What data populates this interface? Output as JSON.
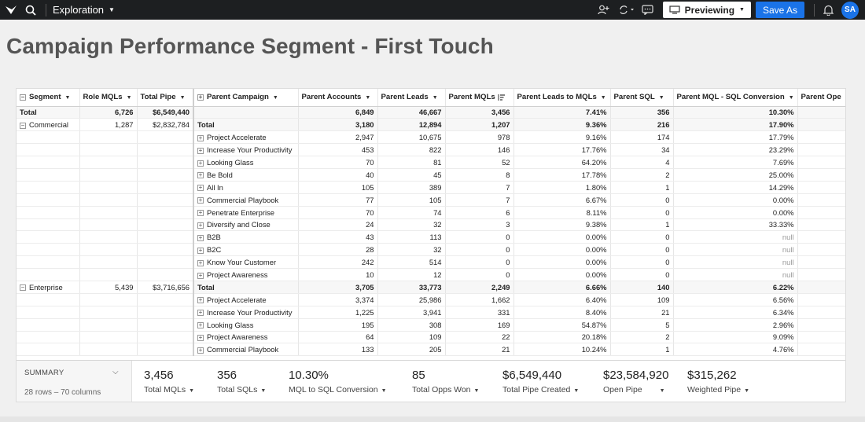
{
  "topbar": {
    "menu_label": "Exploration",
    "previewing_label": "Previewing",
    "save_label": "Save As",
    "avatar_initials": "SA"
  },
  "page_title": "Campaign Performance Segment - First Touch",
  "table": {
    "headers": {
      "segment": "Segment",
      "role_mqls": "Role MQLs",
      "total_pipe": "Total Pipe",
      "parent_campaign": "Parent Campaign",
      "parent_accounts": "Parent Accounts",
      "parent_leads": "Parent Leads",
      "parent_mqls": "Parent MQLs",
      "leads_to_mqls": "Parent Leads to MQLs",
      "parent_sql": "Parent SQL",
      "mql_sql_conv": "Parent MQL - SQL Conversion",
      "parent_ope": "Parent Ope"
    },
    "rows": [
      {
        "kind": "grand",
        "segment": "Total",
        "role_mqls": "6,726",
        "total_pipe": "$6,549,440",
        "campaign": "",
        "accounts": "6,849",
        "leads": "46,667",
        "mqls": "3,456",
        "l2m": "7.41%",
        "sql": "356",
        "conv": "10.30%"
      },
      {
        "kind": "total",
        "segment": "Commercial",
        "role_mqls": "1,287",
        "total_pipe": "$2,832,784",
        "campaign": "Total",
        "accounts": "3,180",
        "leads": "12,894",
        "mqls": "1,207",
        "l2m": "9.36%",
        "sql": "216",
        "conv": "17.90%"
      },
      {
        "kind": "row",
        "campaign": "Project Accelerate",
        "accounts": "2,947",
        "leads": "10,675",
        "mqls": "978",
        "l2m": "9.16%",
        "sql": "174",
        "conv": "17.79%"
      },
      {
        "kind": "row",
        "campaign": "Increase Your Productivity",
        "accounts": "453",
        "leads": "822",
        "mqls": "146",
        "l2m": "17.76%",
        "sql": "34",
        "conv": "23.29%"
      },
      {
        "kind": "row",
        "campaign": "Looking Glass",
        "accounts": "70",
        "leads": "81",
        "mqls": "52",
        "l2m": "64.20%",
        "sql": "4",
        "conv": "7.69%"
      },
      {
        "kind": "row",
        "campaign": "Be Bold",
        "accounts": "40",
        "leads": "45",
        "mqls": "8",
        "l2m": "17.78%",
        "sql": "2",
        "conv": "25.00%"
      },
      {
        "kind": "row",
        "campaign": "All In",
        "accounts": "105",
        "leads": "389",
        "mqls": "7",
        "l2m": "1.80%",
        "sql": "1",
        "conv": "14.29%"
      },
      {
        "kind": "row",
        "campaign": "Commercial Playbook",
        "accounts": "77",
        "leads": "105",
        "mqls": "7",
        "l2m": "6.67%",
        "sql": "0",
        "conv": "0.00%"
      },
      {
        "kind": "row",
        "campaign": "Penetrate Enterprise",
        "accounts": "70",
        "leads": "74",
        "mqls": "6",
        "l2m": "8.11%",
        "sql": "0",
        "conv": "0.00%"
      },
      {
        "kind": "row",
        "campaign": "Diversify and Close",
        "accounts": "24",
        "leads": "32",
        "mqls": "3",
        "l2m": "9.38%",
        "sql": "1",
        "conv": "33.33%"
      },
      {
        "kind": "row",
        "campaign": "B2B",
        "accounts": "43",
        "leads": "113",
        "mqls": "0",
        "l2m": "0.00%",
        "sql": "0",
        "conv": "null"
      },
      {
        "kind": "row",
        "campaign": "B2C",
        "accounts": "28",
        "leads": "32",
        "mqls": "0",
        "l2m": "0.00%",
        "sql": "0",
        "conv": "null"
      },
      {
        "kind": "row",
        "campaign": "Know Your Customer",
        "accounts": "242",
        "leads": "514",
        "mqls": "0",
        "l2m": "0.00%",
        "sql": "0",
        "conv": "null"
      },
      {
        "kind": "row",
        "campaign": "Project Awareness",
        "accounts": "10",
        "leads": "12",
        "mqls": "0",
        "l2m": "0.00%",
        "sql": "0",
        "conv": "null"
      },
      {
        "kind": "total",
        "segment": "Enterprise",
        "role_mqls": "5,439",
        "total_pipe": "$3,716,656",
        "campaign": "Total",
        "accounts": "3,705",
        "leads": "33,773",
        "mqls": "2,249",
        "l2m": "6.66%",
        "sql": "140",
        "conv": "6.22%"
      },
      {
        "kind": "row",
        "campaign": "Project Accelerate",
        "accounts": "3,374",
        "leads": "25,986",
        "mqls": "1,662",
        "l2m": "6.40%",
        "sql": "109",
        "conv": "6.56%"
      },
      {
        "kind": "row",
        "campaign": "Increase Your Productivity",
        "accounts": "1,225",
        "leads": "3,941",
        "mqls": "331",
        "l2m": "8.40%",
        "sql": "21",
        "conv": "6.34%"
      },
      {
        "kind": "row",
        "campaign": "Looking Glass",
        "accounts": "195",
        "leads": "308",
        "mqls": "169",
        "l2m": "54.87%",
        "sql": "5",
        "conv": "2.96%"
      },
      {
        "kind": "row",
        "campaign": "Project Awareness",
        "accounts": "64",
        "leads": "109",
        "mqls": "22",
        "l2m": "20.18%",
        "sql": "2",
        "conv": "9.09%"
      },
      {
        "kind": "row",
        "campaign": "Commercial Playbook",
        "accounts": "133",
        "leads": "205",
        "mqls": "21",
        "l2m": "10.24%",
        "sql": "1",
        "conv": "4.76%"
      }
    ]
  },
  "summary": {
    "label": "SUMMARY",
    "rows_cols": "28 rows – 70 columns",
    "metrics": [
      {
        "value": "3,456",
        "name": "Total MQLs"
      },
      {
        "value": "356",
        "name": "Total SQLs"
      },
      {
        "value": "10.30%",
        "name": "MQL to SQL Conversion"
      },
      {
        "value": "85",
        "name": "Total Opps Won"
      },
      {
        "value": "$6,549,440",
        "name": "Total Pipe Created"
      },
      {
        "value": "$23,584,920",
        "name": "Open Pipe"
      },
      {
        "value": "$315,262",
        "name": "Weighted Pipe"
      }
    ]
  }
}
